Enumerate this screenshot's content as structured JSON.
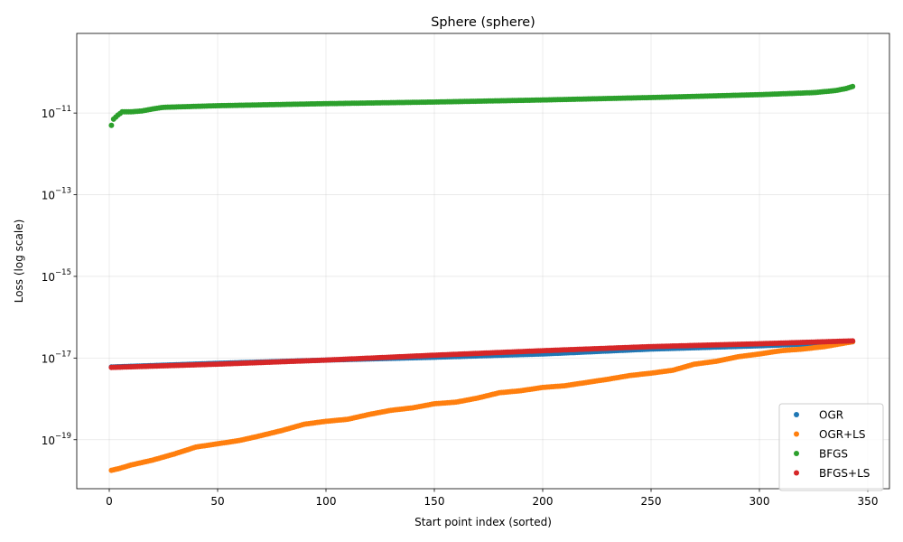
{
  "chart_data": {
    "type": "scatter",
    "title": "Sphere (sphere)",
    "xlabel": "Start point index (sorted)",
    "ylabel": "Loss (log scale)",
    "xlim": [
      -15,
      360
    ],
    "xticks": [
      0,
      50,
      100,
      150,
      200,
      250,
      300,
      350
    ],
    "yscale": "log",
    "ylim_log10": [
      -20.2,
      -9.05
    ],
    "yticks": [
      {
        "exp": -19,
        "label_base": "10",
        "label_exp": "−19"
      },
      {
        "exp": -17,
        "label_base": "10",
        "label_exp": "−17"
      },
      {
        "exp": -15,
        "label_base": "10",
        "label_exp": "−15"
      },
      {
        "exp": -13,
        "label_base": "10",
        "label_exp": "−13"
      },
      {
        "exp": -11,
        "label_base": "10",
        "label_exp": "−11"
      }
    ],
    "grid": true,
    "legend_position": "lower-right",
    "n_points": 343,
    "series": [
      {
        "name": "OGR",
        "color": "#1f77b4",
        "log10_profile": [
          [
            1,
            -17.22
          ],
          [
            50,
            -17.13
          ],
          [
            100,
            -17.05
          ],
          [
            150,
            -16.98
          ],
          [
            200,
            -16.9
          ],
          [
            250,
            -16.78
          ],
          [
            300,
            -16.7
          ],
          [
            340,
            -16.62
          ],
          [
            343,
            -16.6
          ]
        ]
      },
      {
        "name": "OGR+LS",
        "color": "#ff7f0e",
        "log10_profile": [
          [
            1,
            -19.75
          ],
          [
            5,
            -19.7
          ],
          [
            10,
            -19.62
          ],
          [
            20,
            -19.5
          ],
          [
            30,
            -19.35
          ],
          [
            40,
            -19.18
          ],
          [
            50,
            -19.1
          ],
          [
            60,
            -19.02
          ],
          [
            70,
            -18.9
          ],
          [
            80,
            -18.77
          ],
          [
            90,
            -18.62
          ],
          [
            100,
            -18.55
          ],
          [
            110,
            -18.5
          ],
          [
            120,
            -18.38
          ],
          [
            130,
            -18.28
          ],
          [
            140,
            -18.22
          ],
          [
            150,
            -18.12
          ],
          [
            160,
            -18.08
          ],
          [
            170,
            -17.98
          ],
          [
            180,
            -17.85
          ],
          [
            190,
            -17.8
          ],
          [
            200,
            -17.72
          ],
          [
            210,
            -17.68
          ],
          [
            220,
            -17.6
          ],
          [
            230,
            -17.52
          ],
          [
            240,
            -17.43
          ],
          [
            250,
            -17.37
          ],
          [
            260,
            -17.3
          ],
          [
            270,
            -17.15
          ],
          [
            280,
            -17.08
          ],
          [
            290,
            -16.97
          ],
          [
            300,
            -16.9
          ],
          [
            310,
            -16.82
          ],
          [
            320,
            -16.78
          ],
          [
            330,
            -16.72
          ],
          [
            343,
            -16.6
          ]
        ]
      },
      {
        "name": "BFGS",
        "color": "#2ca02c",
        "log10_profile": [
          [
            1,
            -11.3
          ],
          [
            2,
            -11.15
          ],
          [
            4,
            -11.05
          ],
          [
            6,
            -10.97
          ],
          [
            10,
            -10.97
          ],
          [
            15,
            -10.95
          ],
          [
            20,
            -10.9
          ],
          [
            25,
            -10.86
          ],
          [
            50,
            -10.82
          ],
          [
            100,
            -10.77
          ],
          [
            150,
            -10.73
          ],
          [
            200,
            -10.68
          ],
          [
            250,
            -10.62
          ],
          [
            300,
            -10.55
          ],
          [
            325,
            -10.5
          ],
          [
            335,
            -10.45
          ],
          [
            340,
            -10.4
          ],
          [
            343,
            -10.35
          ]
        ]
      },
      {
        "name": "BFGS+LS",
        "color": "#d62728",
        "log10_profile": [
          [
            1,
            -17.23
          ],
          [
            50,
            -17.15
          ],
          [
            100,
            -17.05
          ],
          [
            150,
            -16.93
          ],
          [
            200,
            -16.82
          ],
          [
            250,
            -16.72
          ],
          [
            300,
            -16.65
          ],
          [
            343,
            -16.58
          ]
        ]
      }
    ]
  }
}
